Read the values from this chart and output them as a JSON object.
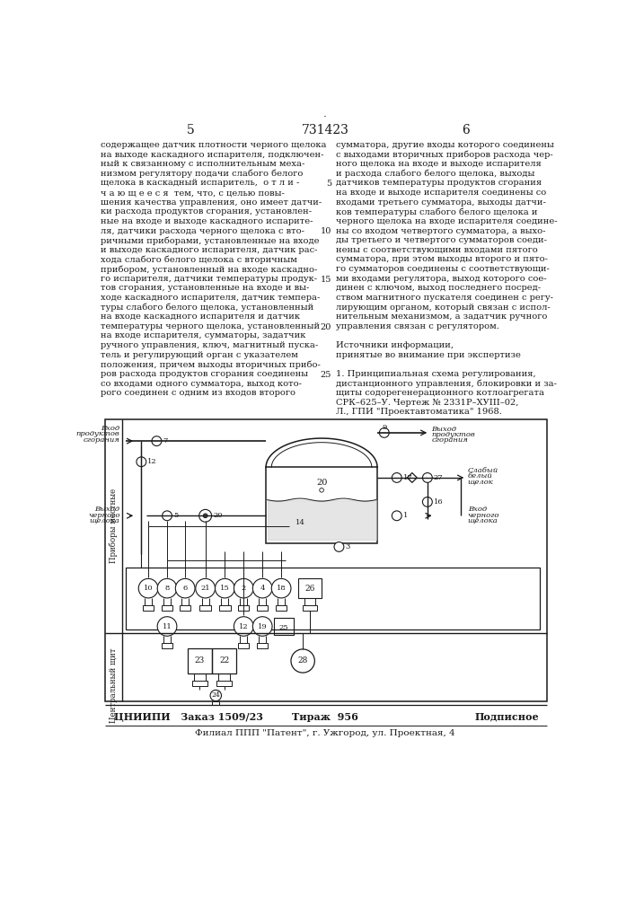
{
  "page_number_left": "5",
  "patent_number": "731423",
  "page_number_right": "6",
  "left_col": [
    "содержащее датчик плотности черного щелока",
    "на выходе каскадного испарителя, подключен-",
    "ный к связанному с исполнительным меха-",
    "низмом регулятору подачи слабого белого",
    "щелока в каскадный испаритель,  о т л и -",
    "ч а ю щ е е с я  тем, что, с целью повы-",
    "шения качества управления, оно имеет датчи-",
    "ки расхода продуктов сгорания, установлен-",
    "ные на входе и выходе каскадного испарите-",
    "ля, датчики расхода черного щелока с вто-",
    "ричными приборами, установленные на входе",
    "и выходе каскадного испарителя, датчик рас-",
    "хода слабого белого щелока с вторичным",
    "прибором, установленный на входе каскадно-",
    "го испарителя, датчики температуры продук-",
    "тов сгорания, установленные на входе и вы-",
    "ходе каскадного испарителя, датчик темпера-",
    "туры слабого белого щелока, установленный",
    "на входе каскадного испарителя и датчик",
    "температуры черного щелока, установленный",
    "на входе испарителя, сумматоры, задатчик",
    "ручного управления, ключ, магнитный пуска-",
    "тель и регулирующий орган с указателем",
    "положения, причем выходы вторичных прибо-",
    "ров расхода продуктов сгорания соединены",
    "со входами одного сумматора, выход кото-",
    "рого соединен с одним из входов второго"
  ],
  "right_col": [
    "сумматора, другие входы которого соединены",
    "с выходами вторичных приборов расхода чер-",
    "ного щелока на входе и выходе испарителя",
    "и расхода слабого белого щелока, выходы",
    "датчиков температуры продуктов сгорания",
    "на входе и выходе испарителя соединены со",
    "входами третьего сумматора, выходы датчи-",
    "ков температуры слабого белого щелока и",
    "черного щелока на входе испарителя соедине-",
    "ны со входом четвертого сумматора, а выхо-",
    "ды третьего и четвертого сумматоров соеди-",
    "нены с соответствующими входами пятого",
    "сумматора, при этом выходы второго и пято-",
    "го сумматоров соединены с соответствующи-",
    "ми входами регулятора, выход которого сое-",
    "динен с ключом, выход последнего посред-",
    "ством магнитного пускателя соединен с регу-",
    "лирующим органом, который связан с испол-",
    "нительным механизмом, а задатчик ручного",
    "управления связан с регулятором.",
    "",
    "Источники информации,",
    "принятые во внимание при экспертизе",
    "",
    "1. Принципиальная схема регулирования,",
    "дистанционного управления, блокировки и за-",
    "щиты содорегенерационного котлоагрегата",
    "СРК–625–У. Чертеж № 2331Р–ХУIII–02,",
    "Л., ГПИ \"Проектавтоматика\" 1968."
  ],
  "line_numbers": [
    [
      "5",
      4
    ],
    [
      "10",
      9
    ],
    [
      "15",
      14
    ],
    [
      "20",
      19
    ],
    [
      "25",
      24
    ]
  ],
  "bottom_left": "ЦНИИПИ   Заказ 1509/23",
  "bottom_center": "Тираж  956",
  "bottom_right": "Подписное",
  "bottom_footer": "Филиал ППП \"Патент\", г. Ужгород, ул. Проектная, 4",
  "bg": "#ffffff",
  "ink": "#1a1a1a"
}
